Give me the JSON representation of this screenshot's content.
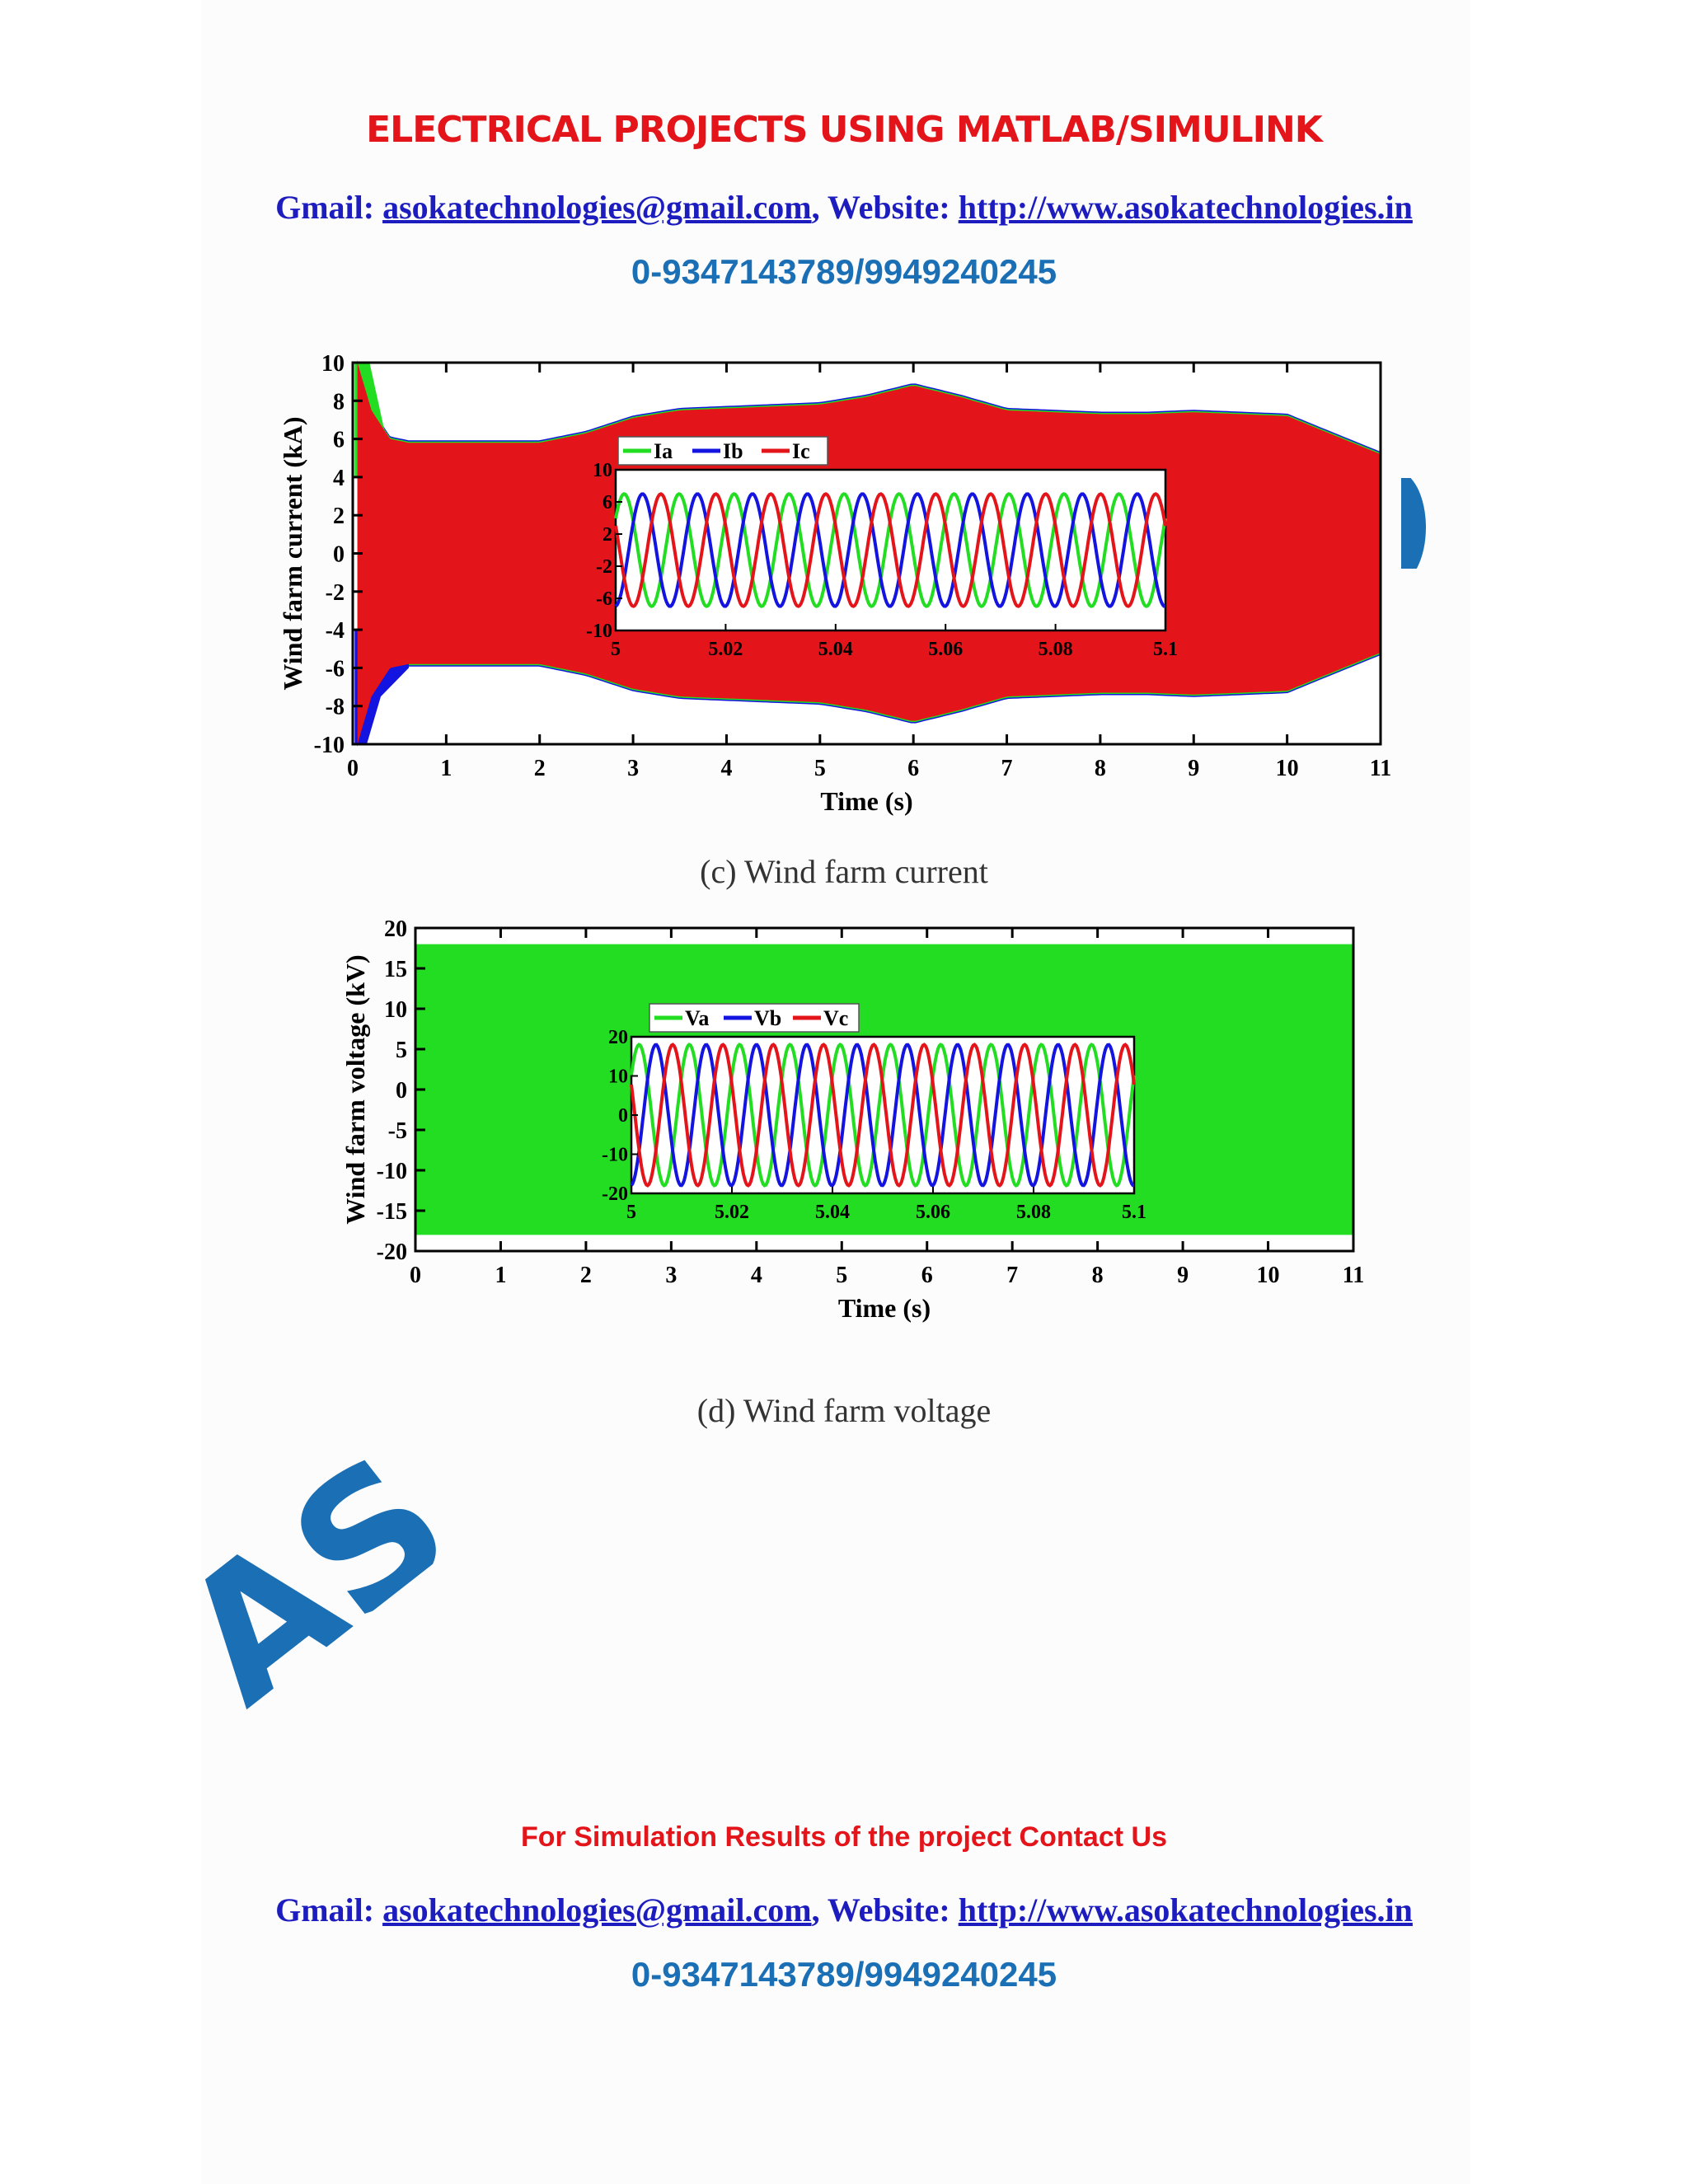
{
  "header": {
    "title": "ELECTRICAL PROJECTS USING MATLAB/SIMULINK",
    "gmail_label": "Gmail:",
    "email": "asokatechnologies@gmail.com",
    "website_label": ", Website:",
    "website": "http://www.asokatechnologies.in",
    "phone": "0-9347143789/9949240245"
  },
  "watermark": {
    "text": "ASOKA",
    "color": "#1a6fb5"
  },
  "figures": {
    "current": {
      "caption": "(c) Wind farm current"
    },
    "voltage": {
      "caption": "(d) Wind farm voltage"
    }
  },
  "footer": {
    "cta": "For Simulation Results of the project Contact Us",
    "gmail_label": "Gmail:",
    "email": "asokatechnologies@gmail.com",
    "website_label": ", Website:",
    "website": "http://www.asokatechnologies.in",
    "phone": "0-9347143789/9949240245"
  },
  "colors": {
    "red": "#e4151a",
    "green": "#22dd22",
    "blue": "#1414e0"
  },
  "chart_data": [
    {
      "type": "area",
      "xlabel": "Time (s)",
      "ylabel": "Wind farm current (kA)",
      "xlim": [
        0,
        11
      ],
      "ylim": [
        -10,
        10
      ],
      "xticks": [
        "0",
        "1",
        "2",
        "3",
        "4",
        "5",
        "6",
        "7",
        "8",
        "9",
        "10",
        "11"
      ],
      "yticks": [
        "10",
        "8",
        "6",
        "4",
        "2",
        "0",
        "-2",
        "-4",
        "-6",
        "-8",
        "-10"
      ],
      "envelope": {
        "t": [
          0.05,
          0.2,
          0.4,
          0.6,
          1.0,
          2.0,
          2.5,
          3.0,
          3.5,
          4.0,
          5.0,
          5.5,
          6.0,
          6.5,
          7.0,
          8.0,
          8.5,
          9.0,
          10.0,
          11.0
        ],
        "max": [
          10,
          7.5,
          6.0,
          5.8,
          5.8,
          5.8,
          6.3,
          7.1,
          7.5,
          7.6,
          7.8,
          8.2,
          8.8,
          8.2,
          7.5,
          7.3,
          7.3,
          7.4,
          7.2,
          5.2
        ]
      },
      "series": [
        {
          "name": "Ia"
        },
        {
          "name": "Ib"
        },
        {
          "name": "Ic"
        }
      ],
      "inset": {
        "xlim": [
          5,
          5.1
        ],
        "ylim": [
          -10,
          10
        ],
        "xticks": [
          "5",
          "5.02",
          "5.04",
          "5.06",
          "5.08",
          "5.1"
        ],
        "yticks": [
          "10",
          "6",
          "2",
          "-2",
          "-6",
          "-10"
        ],
        "amplitude": 7,
        "frequency_hz": 100,
        "legend": [
          "Ia",
          "Ib",
          "Ic"
        ]
      }
    },
    {
      "type": "area",
      "xlabel": "Time (s)",
      "ylabel": "Wind farm voltage (kV)",
      "xlim": [
        0,
        11
      ],
      "ylim": [
        -20,
        20
      ],
      "xticks": [
        "0",
        "1",
        "2",
        "3",
        "4",
        "5",
        "6",
        "7",
        "8",
        "9",
        "10",
        "11"
      ],
      "yticks": [
        "20",
        "15",
        "10",
        "5",
        "0",
        "-5",
        "-10",
        "-15",
        "-20"
      ],
      "envelope": {
        "t": [
          0,
          11
        ],
        "max": [
          18,
          18
        ]
      },
      "series": [
        {
          "name": "Va"
        },
        {
          "name": "Vb"
        },
        {
          "name": "Vc"
        }
      ],
      "inset": {
        "xlim": [
          5,
          5.1
        ],
        "ylim": [
          -20,
          20
        ],
        "xticks": [
          "5",
          "5.02",
          "5.04",
          "5.06",
          "5.08",
          "5.1"
        ],
        "yticks": [
          "20",
          "10",
          "0",
          "-10",
          "-20"
        ],
        "amplitude": 18,
        "frequency_hz": 100,
        "legend": [
          "Va",
          "Vb",
          "Vc"
        ]
      }
    }
  ]
}
